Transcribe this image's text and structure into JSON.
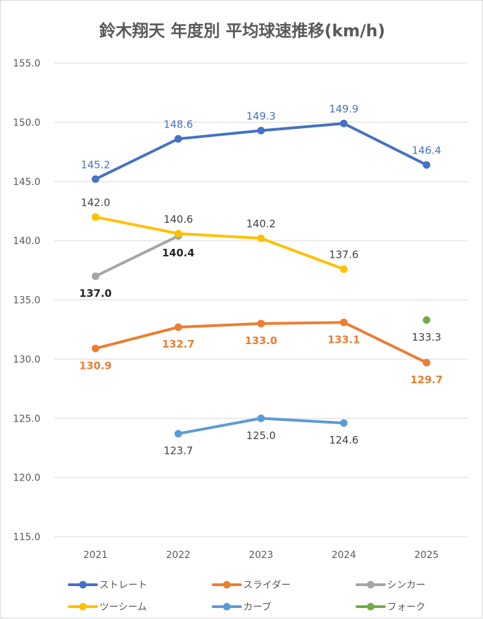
{
  "chart_data": {
    "type": "line",
    "title": "鈴木翔天 年度別 平均球速推移(km/h)",
    "categories": [
      "2021",
      "2022",
      "2023",
      "2024",
      "2025"
    ],
    "ylim": [
      115,
      155
    ],
    "yticks": [
      "115.0",
      "120.0",
      "125.0",
      "130.0",
      "135.0",
      "140.0",
      "145.0",
      "150.0",
      "155.0"
    ],
    "grid": true,
    "legend_position": "bottom",
    "series": [
      {
        "name": "ストレート",
        "color": "#4472c4",
        "values": [
          145.2,
          148.6,
          149.3,
          149.9,
          146.4
        ],
        "labels": [
          "145.2",
          "148.6",
          "149.3",
          "149.9",
          "146.4"
        ],
        "label_pos": "above",
        "label_color": "#4472c4",
        "label_bold": false
      },
      {
        "name": "スライダー",
        "color": "#ed7d31",
        "values": [
          130.9,
          132.7,
          133.0,
          133.1,
          129.7
        ],
        "labels": [
          "130.9",
          "132.7",
          "133.0",
          "133.1",
          "129.7"
        ],
        "label_pos": "below",
        "label_color": "#ed7d31",
        "label_bold": true
      },
      {
        "name": "シンカー",
        "color": "#a5a5a5",
        "values": [
          137.0,
          140.4,
          null,
          null,
          null
        ],
        "labels": [
          "137.0",
          "140.4",
          "",
          "",
          ""
        ],
        "label_pos": "below",
        "label_color": "#262626",
        "label_bold": true
      },
      {
        "name": "ツーシーム",
        "color": "#ffc000",
        "values": [
          142.0,
          140.6,
          140.2,
          137.6,
          null
        ],
        "labels": [
          "142.0",
          "140.6",
          "140.2",
          "137.6",
          ""
        ],
        "label_pos": "above",
        "label_color": "#404040",
        "label_bold": false
      },
      {
        "name": "カーブ",
        "color": "#5b9bd5",
        "values": [
          null,
          123.7,
          125.0,
          124.6,
          null
        ],
        "labels": [
          "",
          "123.7",
          "125.0",
          "124.6",
          ""
        ],
        "label_pos": "below",
        "label_color": "#404040",
        "label_bold": false
      },
      {
        "name": "フォーク",
        "color": "#70ad47",
        "values": [
          null,
          null,
          null,
          null,
          133.3
        ],
        "labels": [
          "",
          "",
          "",
          "",
          "133.3"
        ],
        "label_pos": "below",
        "label_color": "#404040",
        "label_bold": false
      }
    ]
  }
}
